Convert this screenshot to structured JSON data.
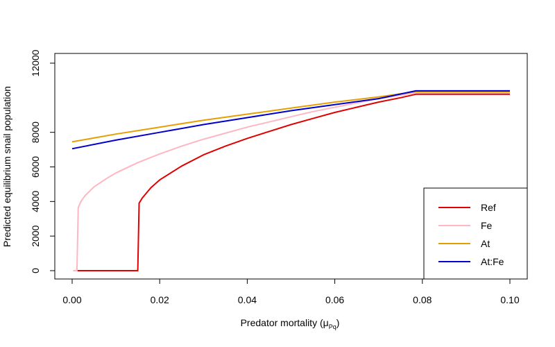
{
  "chart_data": {
    "type": "line",
    "xlabel_main": "Predator mortality (",
    "xlabel_mu": "μ",
    "xlabel_sub": "Pq",
    "xlabel_close": ")",
    "ylabel": "Predicted equilibrium snail population",
    "xlim": [
      0.0,
      0.1
    ],
    "ylim": [
      0,
      12000
    ],
    "x_ticks": [
      0.0,
      0.02,
      0.04,
      0.06,
      0.08,
      0.1
    ],
    "x_tick_labels": [
      "0.00",
      "0.02",
      "0.04",
      "0.06",
      "0.08",
      "0.10"
    ],
    "y_ticks": [
      0,
      2000,
      4000,
      6000,
      8000,
      12000
    ],
    "y_tick_labels": [
      "0",
      "2000",
      "4000",
      "6000",
      "8000",
      "12000"
    ],
    "grid": false,
    "legend_position": "bottom-right",
    "series": [
      {
        "name": "Ref",
        "color": "#e00000",
        "points": [
          [
            0.0012,
            0
          ],
          [
            0.015,
            0
          ],
          [
            0.0153,
            3900
          ],
          [
            0.016,
            4200
          ],
          [
            0.018,
            4800
          ],
          [
            0.02,
            5250
          ],
          [
            0.025,
            6050
          ],
          [
            0.03,
            6700
          ],
          [
            0.035,
            7200
          ],
          [
            0.04,
            7650
          ],
          [
            0.045,
            8050
          ],
          [
            0.05,
            8450
          ],
          [
            0.055,
            8800
          ],
          [
            0.06,
            9150
          ],
          [
            0.065,
            9450
          ],
          [
            0.07,
            9750
          ],
          [
            0.075,
            10000
          ],
          [
            0.0785,
            10200
          ],
          [
            0.08,
            10200
          ],
          [
            0.1,
            10200
          ]
        ]
      },
      {
        "name": "Fe",
        "color": "#ffb6c1",
        "points": [
          [
            0.0002,
            0
          ],
          [
            0.0011,
            0
          ],
          [
            0.0014,
            3650
          ],
          [
            0.002,
            4000
          ],
          [
            0.003,
            4350
          ],
          [
            0.005,
            4850
          ],
          [
            0.008,
            5350
          ],
          [
            0.01,
            5650
          ],
          [
            0.015,
            6250
          ],
          [
            0.02,
            6750
          ],
          [
            0.025,
            7200
          ],
          [
            0.03,
            7600
          ],
          [
            0.035,
            7950
          ],
          [
            0.04,
            8300
          ],
          [
            0.045,
            8600
          ],
          [
            0.05,
            8900
          ],
          [
            0.055,
            9200
          ],
          [
            0.06,
            9450
          ],
          [
            0.065,
            9700
          ],
          [
            0.07,
            9950
          ],
          [
            0.075,
            10150
          ],
          [
            0.0785,
            10300
          ],
          [
            0.08,
            10300
          ],
          [
            0.1,
            10300
          ]
        ]
      },
      {
        "name": "At",
        "color": "#e69f00",
        "points": [
          [
            0.0,
            7450
          ],
          [
            0.01,
            7900
          ],
          [
            0.02,
            8300
          ],
          [
            0.03,
            8700
          ],
          [
            0.04,
            9050
          ],
          [
            0.05,
            9400
          ],
          [
            0.06,
            9750
          ],
          [
            0.07,
            10050
          ],
          [
            0.0785,
            10350
          ],
          [
            0.08,
            10350
          ],
          [
            0.1,
            10350
          ]
        ]
      },
      {
        "name": "At:Fe",
        "color": "#0000cc",
        "points": [
          [
            0.0,
            7050
          ],
          [
            0.01,
            7550
          ],
          [
            0.02,
            8000
          ],
          [
            0.03,
            8450
          ],
          [
            0.04,
            8850
          ],
          [
            0.05,
            9250
          ],
          [
            0.06,
            9600
          ],
          [
            0.07,
            9950
          ],
          [
            0.0785,
            10400
          ],
          [
            0.08,
            10400
          ],
          [
            0.1,
            10400
          ]
        ]
      }
    ]
  }
}
